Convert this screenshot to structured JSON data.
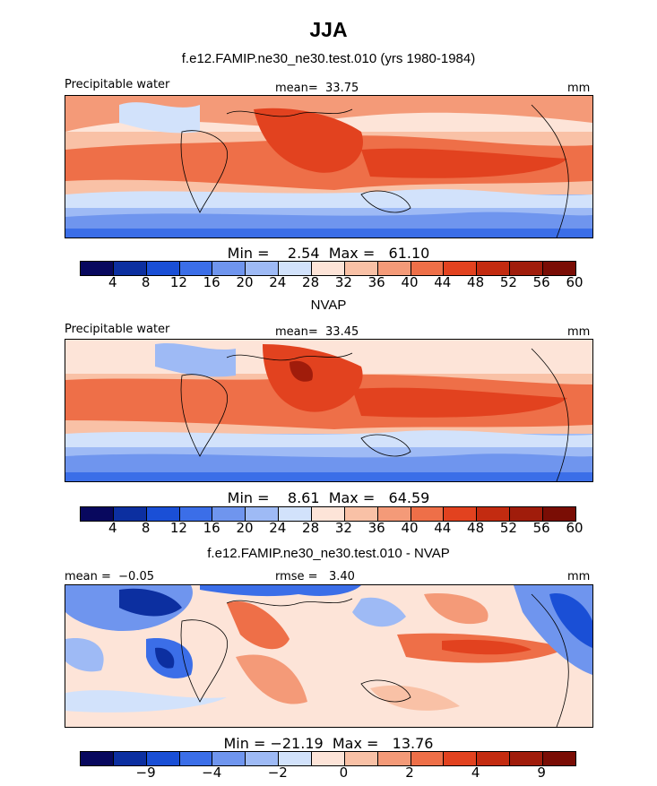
{
  "season": "JJA",
  "colors": [
    "#08085e",
    "#0c2fa0",
    "#1a4fd6",
    "#3b6ee8",
    "#6f95ee",
    "#9ebaf5",
    "#d2e2fb",
    "#fde4d8",
    "#f9c1a6",
    "#f49a78",
    "#ee6f48",
    "#e2421f",
    "#c32b10",
    "#a01c0b",
    "#7a0d05"
  ],
  "panels": [
    {
      "title": "f.e12.FAMIP.ne30_ne30.test.010 (yrs 1980-1984)",
      "left_label": "Precipitable water",
      "center_label": "mean=  33.75",
      "units": "mm",
      "stats": "Min =    2.54  Max =   61.10",
      "ticks": [
        "4",
        "8",
        "12",
        "16",
        "20",
        "24",
        "28",
        "32",
        "36",
        "40",
        "44",
        "48",
        "52",
        "56",
        "60"
      ]
    },
    {
      "title": "NVAP",
      "left_label": "Precipitable water",
      "center_label": "mean=  33.45",
      "units": "mm",
      "stats": "Min =    8.61  Max =   64.59",
      "ticks": [
        "4",
        "8",
        "12",
        "16",
        "20",
        "24",
        "28",
        "32",
        "36",
        "40",
        "44",
        "48",
        "52",
        "56",
        "60"
      ]
    },
    {
      "title": "f.e12.FAMIP.ne30_ne30.test.010 - NVAP",
      "left_label": "mean =  −0.05",
      "center_label": "rmse =   3.40",
      "units": "mm",
      "stats": "Min = −21.19  Max =   13.76",
      "ticks": [
        "−9",
        "−4",
        "−2",
        "0",
        "2",
        "4",
        "9"
      ]
    }
  ]
}
